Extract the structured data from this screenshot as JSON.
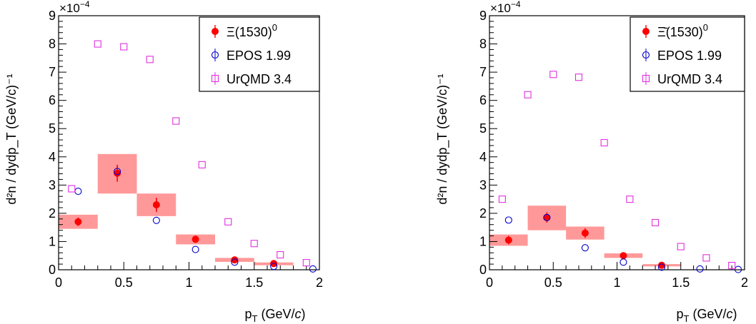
{
  "colors": {
    "data": "#ff0000",
    "syst_band": "#ff9999",
    "epos": "#0000cc",
    "urqmd": "#e030e0"
  },
  "chart_data": [
    {
      "type": "scatter",
      "xlabel_base": "p",
      "xlabel_sub": "T",
      "xlabel_rest": " (GeV/",
      "xlabel_c": "c",
      "xlabel_close": ")",
      "ylabel": "d²n / dydp_T (GeV/c)⁻¹",
      "yexp_base": "×10",
      "yexp_pow": "−4",
      "xlim": [
        0,
        2
      ],
      "ylim": [
        0,
        9
      ],
      "xticks": [
        "0",
        "0.5",
        "1",
        "1.5",
        "2"
      ],
      "yticks": [
        "0",
        "1",
        "2",
        "3",
        "4",
        "5",
        "6",
        "7",
        "8",
        "9"
      ],
      "grid": false,
      "legend_position": "top-right",
      "legend": [
        {
          "label_main": "Ξ(1530)",
          "label_sup": "0",
          "marker": "filled-circle"
        },
        {
          "label_main": "EPOS 1.99",
          "label_sup": "",
          "marker": "open-circle"
        },
        {
          "label_main": "UrQMD 3.4",
          "label_sup": "",
          "marker": "open-square"
        }
      ],
      "series": [
        {
          "name": "Ξ(1530)0",
          "marker": "filled-circle",
          "x": [
            0.15,
            0.45,
            0.75,
            1.05,
            1.35,
            1.65
          ],
          "y": [
            1.7,
            3.42,
            2.3,
            1.08,
            0.35,
            0.22
          ],
          "yerr": [
            0.15,
            0.3,
            0.25,
            0.13,
            0.07,
            0.05
          ],
          "syst_x": [
            [
              0.0,
              0.3
            ],
            [
              0.3,
              0.6
            ],
            [
              0.6,
              0.9
            ],
            [
              0.9,
              1.2
            ],
            [
              1.2,
              1.5
            ],
            [
              1.5,
              1.8
            ]
          ],
          "syst_y": [
            [
              1.45,
              1.95
            ],
            [
              2.7,
              4.1
            ],
            [
              1.9,
              2.7
            ],
            [
              0.9,
              1.25
            ],
            [
              0.28,
              0.42
            ],
            [
              0.16,
              0.26
            ]
          ]
        },
        {
          "name": "EPOS 1.99",
          "marker": "open-circle",
          "x": [
            0.15,
            0.45,
            0.75,
            1.05,
            1.35,
            1.65,
            1.95
          ],
          "y": [
            2.78,
            3.48,
            1.75,
            0.72,
            0.27,
            0.12,
            0.03
          ]
        },
        {
          "name": "UrQMD 3.4",
          "marker": "open-square",
          "x": [
            0.1,
            0.3,
            0.5,
            0.7,
            0.9,
            1.1,
            1.3,
            1.5,
            1.7,
            1.9
          ],
          "y": [
            2.87,
            8.0,
            7.9,
            7.45,
            5.27,
            3.72,
            1.7,
            0.93,
            0.53,
            0.25
          ]
        }
      ]
    },
    {
      "type": "scatter",
      "xlabel_base": "p",
      "xlabel_sub": "T",
      "xlabel_rest": " (GeV/",
      "xlabel_c": "c",
      "xlabel_close": ")",
      "ylabel": "d²n / dydp_T (GeV/c)⁻¹",
      "yexp_base": "×10",
      "yexp_pow": "−4",
      "xlim": [
        0,
        2
      ],
      "ylim": [
        0,
        9
      ],
      "xticks": [
        "0",
        "0.5",
        "1",
        "1.5",
        "2"
      ],
      "yticks": [
        "0",
        "1",
        "2",
        "3",
        "4",
        "5",
        "6",
        "7",
        "8",
        "9"
      ],
      "grid": false,
      "legend_position": "top-right",
      "legend": [
        {
          "label_main": "Ξ̄(1530)",
          "label_sup": "0",
          "marker": "filled-circle"
        },
        {
          "label_main": "EPOS 1.99",
          "label_sup": "",
          "marker": "open-circle"
        },
        {
          "label_main": "UrQMD 3.4",
          "label_sup": "",
          "marker": "open-square"
        }
      ],
      "series": [
        {
          "name": "Ξ̄(1530)0",
          "marker": "filled-circle",
          "x": [
            0.15,
            0.45,
            0.75,
            1.05,
            1.35
          ],
          "y": [
            1.05,
            1.85,
            1.3,
            0.5,
            0.16
          ],
          "yerr": [
            0.15,
            0.18,
            0.17,
            0.08,
            0.05
          ],
          "syst_x": [
            [
              0.0,
              0.3
            ],
            [
              0.3,
              0.6
            ],
            [
              0.6,
              0.9
            ],
            [
              0.9,
              1.2
            ],
            [
              1.2,
              1.5
            ]
          ],
          "syst_y": [
            [
              0.85,
              1.25
            ],
            [
              1.4,
              2.27
            ],
            [
              1.07,
              1.53
            ],
            [
              0.42,
              0.58
            ],
            [
              0.12,
              0.2
            ]
          ]
        },
        {
          "name": "EPOS 1.99",
          "marker": "open-circle",
          "x": [
            0.15,
            0.45,
            0.75,
            1.05,
            1.35,
            1.65,
            1.95
          ],
          "y": [
            1.76,
            1.85,
            0.78,
            0.27,
            0.09,
            0.03,
            0.01
          ]
        },
        {
          "name": "UrQMD 3.4",
          "marker": "open-square",
          "x": [
            0.1,
            0.3,
            0.5,
            0.7,
            0.9,
            1.1,
            1.3,
            1.5,
            1.7,
            1.9
          ],
          "y": [
            2.5,
            6.2,
            6.92,
            6.82,
            4.5,
            2.5,
            1.67,
            0.82,
            0.42,
            0.15
          ]
        }
      ]
    }
  ]
}
